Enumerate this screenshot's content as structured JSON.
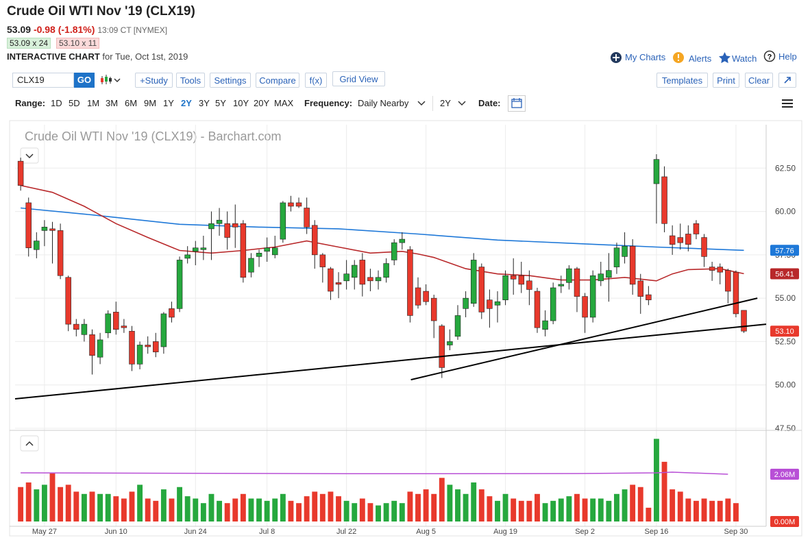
{
  "header": {
    "title": "Crude Oil WTI Nov '19 (CLX19)",
    "last": "53.09",
    "change": "-0.98 (-1.81%)",
    "time": "13:09 CT [NYMEX]",
    "bid": "53.09 x 24",
    "ask": "53.10 x 11",
    "chart_label": "INTERACTIVE CHART",
    "chart_date": "for Tue, Oct 1st, 2019"
  },
  "nav": [
    "My Charts",
    "Alerts",
    "Watch",
    "Help"
  ],
  "toolbar": {
    "symbol": "CLX19",
    "go": "GO",
    "left_buttons": [
      "+Study",
      "Tools",
      "Settings",
      "Compare",
      "f(x)",
      "Grid View"
    ],
    "right_buttons": [
      "Templates",
      "Print",
      "Clear"
    ]
  },
  "range_bar": {
    "range_label": "Range:",
    "ranges": [
      "1D",
      "5D",
      "1M",
      "3M",
      "6M",
      "9M",
      "1Y",
      "2Y",
      "3Y",
      "5Y",
      "10Y",
      "20Y",
      "MAX"
    ],
    "active": 7,
    "frequency_label": "Frequency:",
    "frequency": "Daily Nearby",
    "period": "2Y",
    "date_label": "Date:"
  },
  "chart_data": {
    "type": "candlestick",
    "title": "Crude Oil WTI Nov '19 (CLX19) - Barchart.com",
    "categories": [
      null,
      null,
      null,
      "May 27",
      null,
      null,
      null,
      null,
      null,
      null,
      null,
      null,
      "Jun 10",
      null,
      null,
      null,
      null,
      null,
      null,
      null,
      null,
      null,
      "Jun 24",
      null,
      null,
      null,
      null,
      null,
      null,
      null,
      null,
      "Jul 8",
      null,
      null,
      null,
      null,
      null,
      null,
      null,
      null,
      null,
      "Jul 22",
      null,
      null,
      null,
      null,
      null,
      null,
      null,
      null,
      null,
      "Aug 5",
      null,
      null,
      null,
      null,
      null,
      null,
      null,
      null,
      null,
      "Aug 19",
      null,
      null,
      null,
      null,
      null,
      null,
      null,
      null,
      null,
      "Sep 2",
      null,
      null,
      null,
      null,
      null,
      null,
      null,
      null,
      "Sep 16",
      null,
      null,
      null,
      null,
      null,
      null,
      null,
      null,
      null,
      "Sep 30",
      null
    ],
    "open": [
      62.9,
      60.5,
      57.8,
      58.9,
      59.0,
      58.9,
      56.2,
      53.5,
      52.9,
      52.9,
      51.6,
      53.0,
      54.2,
      53.4,
      53.1,
      51.2,
      52.3,
      52.5,
      52.2,
      54.4,
      54.4,
      57.3,
      57.7,
      57.8,
      59.0,
      59.3,
      59.3,
      59.3,
      59.3,
      56.5,
      57.4,
      57.7,
      57.5,
      58.4,
      60.5,
      60.5,
      60.2,
      59.2,
      57.5,
      56.7,
      55.9,
      56.0,
      56.2,
      57.2,
      56.2,
      56.0,
      56.2,
      57.2,
      58.2,
      57.8,
      55.6,
      55.4,
      55.0,
      53.4,
      52.3,
      52.8,
      54.4,
      54.7,
      56.8,
      54.9,
      54.6,
      54.9,
      56.3,
      56.3,
      56.0,
      55.4,
      53.2,
      53.7,
      55.7,
      55.9,
      56.7,
      55.1,
      53.9,
      56.0,
      56.2,
      56.8,
      57.4,
      58.0,
      56.0,
      55.2,
      61.6,
      62.0,
      58.6,
      58.5,
      58.7,
      59.3,
      58.5,
      56.8,
      56.8,
      56.6,
      56.5,
      54.3
    ],
    "high": [
      63.1,
      60.8,
      58.8,
      59.5,
      59.4,
      59.3,
      56.3,
      53.8,
      53.8,
      53.2,
      53.0,
      54.3,
      54.8,
      53.8,
      53.4,
      52.5,
      52.8,
      53.0,
      54.2,
      54.8,
      57.4,
      58.0,
      58.3,
      58.6,
      60.0,
      60.2,
      60.0,
      60.4,
      59.5,
      57.6,
      57.8,
      58.5,
      58.6,
      60.6,
      60.9,
      60.8,
      60.8,
      59.5,
      57.6,
      56.8,
      56.5,
      57.2,
      57.2,
      57.6,
      56.7,
      56.6,
      57.3,
      58.4,
      58.8,
      58.0,
      56.2,
      55.8,
      55.2,
      53.5,
      53.2,
      54.6,
      55.4,
      57.6,
      57.0,
      55.5,
      55.4,
      56.6,
      57.3,
      57.1,
      56.6,
      55.6,
      54.3,
      55.9,
      56.3,
      56.9,
      56.8,
      55.3,
      56.6,
      57.1,
      57.6,
      58.2,
      58.8,
      58.4,
      56.4,
      55.7,
      63.3,
      62.6,
      59.2,
      59.3,
      59.2,
      59.5,
      58.7,
      57.1,
      57.0,
      56.7,
      56.6,
      54.3
    ],
    "low": [
      61.2,
      57.4,
      57.3,
      58.0,
      57.0,
      56.1,
      53.1,
      52.8,
      52.5,
      50.6,
      51.2,
      52.7,
      52.9,
      53.0,
      50.8,
      50.9,
      51.8,
      51.6,
      51.8,
      53.6,
      54.2,
      57.0,
      56.9,
      57.2,
      57.2,
      58.6,
      57.8,
      57.9,
      55.9,
      56.2,
      56.8,
      57.1,
      57.3,
      58.2,
      60.0,
      60.2,
      58.7,
      56.7,
      55.9,
      54.9,
      55.0,
      55.5,
      55.5,
      55.1,
      55.4,
      55.5,
      55.9,
      56.9,
      57.8,
      53.6,
      54.4,
      54.6,
      52.7,
      50.4,
      52.0,
      52.6,
      53.9,
      54.5,
      53.8,
      53.3,
      53.6,
      54.6,
      55.2,
      55.3,
      54.6,
      53.0,
      52.8,
      53.5,
      55.3,
      55.5,
      54.2,
      53.0,
      53.6,
      55.7,
      54.8,
      56.4,
      57.0,
      55.2,
      54.1,
      54.6,
      59.3,
      58.8,
      57.5,
      57.8,
      57.7,
      58.4,
      56.8,
      56.0,
      55.8,
      54.7,
      53.9,
      53.0
    ],
    "close": [
      61.5,
      57.9,
      58.3,
      59.1,
      58.9,
      56.3,
      53.5,
      53.2,
      53.5,
      51.7,
      52.6,
      54.1,
      53.2,
      53.3,
      51.2,
      52.3,
      52.2,
      51.9,
      54.1,
      53.9,
      57.2,
      57.5,
      57.9,
      57.9,
      59.3,
      59.5,
      58.5,
      59.1,
      56.2,
      57.3,
      57.6,
      57.9,
      57.9,
      60.5,
      60.3,
      60.3,
      59.1,
      57.5,
      56.8,
      55.4,
      55.8,
      56.4,
      56.9,
      55.8,
      56.0,
      56.2,
      57.0,
      58.2,
      58.4,
      54.0,
      54.6,
      54.8,
      53.7,
      51.0,
      52.5,
      54.0,
      55.0,
      57.2,
      54.2,
      54.4,
      54.8,
      56.3,
      56.1,
      55.8,
      55.5,
      53.3,
      53.7,
      55.6,
      55.8,
      56.7,
      55.1,
      53.9,
      56.3,
      56.4,
      56.6,
      57.9,
      58.0,
      55.8,
      55.1,
      54.9,
      63.0,
      59.3,
      58.1,
      58.2,
      58.1,
      58.7,
      57.4,
      56.6,
      56.5,
      55.4,
      54.1,
      53.1
    ],
    "last_close_label": "53.10",
    "up_color": "#26a83e",
    "down_color": "#e8392c",
    "xlim": [
      -0.7,
      93.8
    ],
    "ylim": [
      47.5,
      65
    ],
    "yticks": [
      {
        "value": 47.5,
        "label": "47.50"
      },
      {
        "value": 50,
        "label": "50.00"
      },
      {
        "value": 52.5,
        "label": "52.50"
      },
      {
        "value": 55,
        "label": "55.00"
      },
      {
        "value": 57.5,
        "label": "57.50"
      },
      {
        "value": 60,
        "label": "60.00"
      },
      {
        "value": 62.5,
        "label": "62.50"
      }
    ],
    "grid": true,
    "overlays": [
      {
        "color": "#1e78d8",
        "x": [
          0,
          9,
          20,
          30,
          40,
          50,
          60,
          70,
          80,
          91
        ],
        "values": [
          60.2,
          59.8,
          59.26,
          59.1,
          59.0,
          58.7,
          58.35,
          58.15,
          57.95,
          57.76
        ],
        "last_label": "57.76"
      },
      {
        "color": "#b8282a",
        "x": [
          0,
          4,
          8,
          12,
          16,
          20,
          24,
          28,
          32,
          36,
          40,
          44,
          48,
          50,
          52,
          56,
          60,
          64,
          68,
          72,
          76,
          80,
          82,
          84,
          88,
          91
        ],
        "values": [
          61.5,
          61.1,
          60.3,
          59.3,
          58.5,
          57.75,
          57.6,
          57.75,
          57.95,
          58.3,
          57.95,
          57.6,
          57.7,
          57.55,
          57.35,
          56.7,
          56.4,
          56.3,
          56.05,
          56.05,
          56.2,
          56.0,
          56.4,
          56.65,
          56.7,
          56.41
        ],
        "last_label": "56.41"
      }
    ],
    "trendlines": [
      {
        "color": "#000000",
        "x": [
          -0.7,
          93.8
        ],
        "values": [
          49.2,
          53.5
        ]
      },
      {
        "color": "#000000",
        "x": [
          49.1,
          92.7
        ],
        "values": [
          50.3,
          55.0
        ]
      }
    ],
    "volume": {
      "values": [
        1.5,
        1.7,
        1.4,
        1.6,
        2.1,
        1.5,
        1.6,
        1.3,
        1.2,
        1.3,
        1.2,
        1.2,
        1.1,
        1.0,
        1.3,
        1.6,
        1.0,
        0.9,
        1.4,
        1.0,
        1.5,
        1.1,
        1.0,
        0.8,
        1.2,
        0.9,
        0.8,
        1.0,
        1.2,
        1.0,
        1.0,
        0.9,
        1.0,
        1.2,
        0.9,
        0.8,
        1.1,
        1.3,
        1.2,
        1.3,
        1.1,
        0.9,
        0.8,
        1.0,
        0.8,
        0.7,
        0.8,
        0.9,
        0.8,
        1.3,
        1.2,
        1.4,
        1.2,
        1.9,
        1.6,
        1.4,
        1.2,
        1.7,
        1.4,
        1.1,
        0.9,
        1.2,
        1.0,
        0.9,
        0.9,
        1.2,
        0.8,
        0.9,
        1.0,
        1.1,
        1.2,
        1.0,
        1.0,
        1.0,
        0.9,
        1.2,
        1.4,
        1.6,
        1.5,
        0.6,
        3.6,
        2.6,
        1.4,
        1.3,
        1.0,
        0.9,
        1.0,
        0.9,
        0.9,
        1.0,
        0.8,
        null
      ],
      "ylim": [
        0,
        3.85
      ],
      "yticks": [
        {
          "value": 0,
          "label": "0.00M"
        }
      ],
      "average": {
        "color": "#b84fd6",
        "x": [
          0,
          20,
          45,
          70,
          80,
          82,
          89
        ],
        "values": [
          2.12,
          2.1,
          2.08,
          2.09,
          2.12,
          2.15,
          2.06
        ],
        "last_label": "2.06M"
      }
    }
  }
}
